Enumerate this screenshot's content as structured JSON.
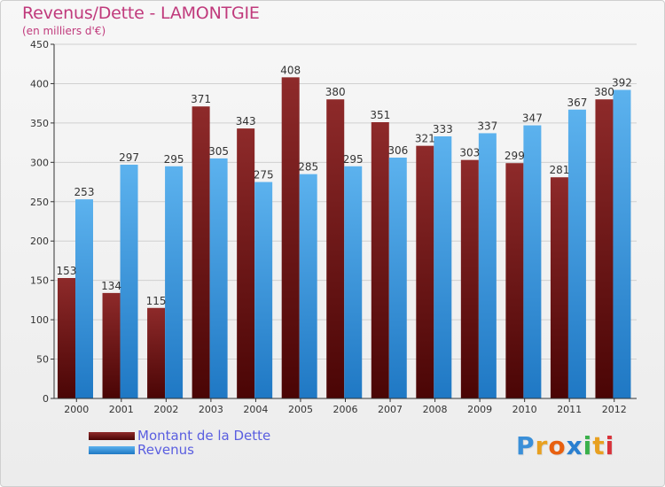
{
  "header": {
    "title": "Revenus/Dette - LAMONTGIE",
    "subtitle": "(en milliers d'€)"
  },
  "logo": {
    "text": "Proxiti",
    "letters": [
      "P",
      "r",
      "o",
      "x",
      "i",
      "t",
      "i"
    ],
    "colors": [
      "#3a8fd8",
      "#e8a020",
      "#e86010",
      "#2a7fd0",
      "#3ab04a",
      "#e8a020",
      "#d8323a"
    ]
  },
  "colors": {
    "dette": "#7a1a1a",
    "revenus": "#3d9ee0",
    "grid": "#d0d0d0",
    "axis": "#333333",
    "label": "#333333"
  },
  "chart_data": {
    "type": "bar",
    "title": "Revenus/Dette - LAMONTGIE",
    "subtitle": "(en milliers d'€)",
    "categories": [
      "2000",
      "2001",
      "2002",
      "2003",
      "2004",
      "2005",
      "2006",
      "2007",
      "2008",
      "2009",
      "2010",
      "2011",
      "2012"
    ],
    "series": [
      {
        "name": "Montant de la Dette",
        "values": [
          153,
          134,
          115,
          371,
          343,
          408,
          380,
          351,
          321,
          303,
          299,
          281,
          380
        ]
      },
      {
        "name": "Revenus",
        "values": [
          253,
          297,
          295,
          305,
          275,
          285,
          295,
          306,
          333,
          337,
          347,
          367,
          392
        ]
      }
    ],
    "yticks": [
      "0",
      "50",
      "100",
      "150",
      "200",
      "250",
      "300",
      "350",
      "400",
      "450"
    ],
    "ylim": [
      0,
      450
    ],
    "grid": true,
    "legend": "bottom-left"
  }
}
